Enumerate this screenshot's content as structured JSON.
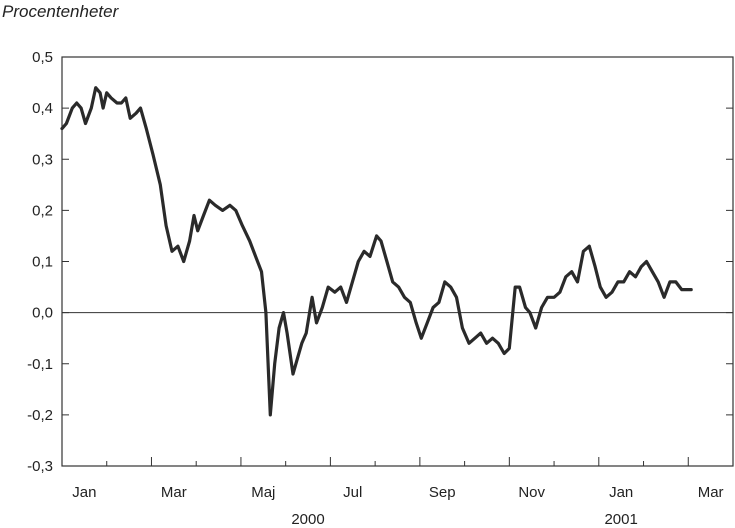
{
  "chart_data": {
    "type": "line",
    "unit_label": "Procentenheter",
    "ylim": [
      -0.3,
      0.5
    ],
    "yticks": [
      "0,5",
      "0,4",
      "0,3",
      "0,2",
      "0,1",
      "0,0",
      "-0,1",
      "-0,2",
      "-0,3"
    ],
    "ytick_values": [
      0.5,
      0.4,
      0.3,
      0.2,
      0.1,
      0.0,
      -0.1,
      -0.2,
      -0.3
    ],
    "x_start": "2000-01",
    "x_end": "2001-03",
    "month_labels": [
      {
        "label": "Jan",
        "at": "2000-01"
      },
      {
        "label": "Mar",
        "at": "2000-03"
      },
      {
        "label": "Maj",
        "at": "2000-05"
      },
      {
        "label": "Jul",
        "at": "2000-07"
      },
      {
        "label": "Sep",
        "at": "2000-09"
      },
      {
        "label": "Nov",
        "at": "2000-11"
      },
      {
        "label": "Jan",
        "at": "2001-01"
      },
      {
        "label": "Mar",
        "at": "2001-03"
      }
    ],
    "year_labels": [
      {
        "label": "2000",
        "at": "2000-06"
      },
      {
        "label": "2001",
        "at": "2001-01"
      }
    ],
    "zero_line": 0.0,
    "grid": false,
    "series": [
      {
        "color": "#2a2a2a",
        "points": [
          [
            "2000-01-01",
            0.36
          ],
          [
            "2000-01-04",
            0.37
          ],
          [
            "2000-01-08",
            0.4
          ],
          [
            "2000-01-11",
            0.41
          ],
          [
            "2000-01-14",
            0.4
          ],
          [
            "2000-01-17",
            0.37
          ],
          [
            "2000-01-21",
            0.4
          ],
          [
            "2000-01-24",
            0.44
          ],
          [
            "2000-01-27",
            0.43
          ],
          [
            "2000-01-29",
            0.4
          ],
          [
            "2000-02-01",
            0.43
          ],
          [
            "2000-02-04",
            0.42
          ],
          [
            "2000-02-08",
            0.41
          ],
          [
            "2000-02-11",
            0.41
          ],
          [
            "2000-02-14",
            0.42
          ],
          [
            "2000-02-17",
            0.38
          ],
          [
            "2000-02-21",
            0.39
          ],
          [
            "2000-02-24",
            0.4
          ],
          [
            "2000-02-28",
            0.36
          ],
          [
            "2000-03-02",
            0.31
          ],
          [
            "2000-03-07",
            0.25
          ],
          [
            "2000-03-11",
            0.17
          ],
          [
            "2000-03-15",
            0.12
          ],
          [
            "2000-03-19",
            0.13
          ],
          [
            "2000-03-23",
            0.1
          ],
          [
            "2000-03-27",
            0.14
          ],
          [
            "2000-03-30",
            0.19
          ],
          [
            "2000-04-02",
            0.16
          ],
          [
            "2000-04-06",
            0.19
          ],
          [
            "2000-04-10",
            0.22
          ],
          [
            "2000-04-14",
            0.21
          ],
          [
            "2000-04-19",
            0.2
          ],
          [
            "2000-04-24",
            0.21
          ],
          [
            "2000-04-28",
            0.2
          ],
          [
            "2000-05-02",
            0.17
          ],
          [
            "2000-05-07",
            0.14
          ],
          [
            "2000-05-11",
            0.11
          ],
          [
            "2000-05-15",
            0.08
          ],
          [
            "2000-05-18",
            0.0
          ],
          [
            "2000-05-21",
            -0.2
          ],
          [
            "2000-05-24",
            -0.1
          ],
          [
            "2000-05-27",
            -0.03
          ],
          [
            "2000-05-30",
            0.0
          ],
          [
            "2000-06-02",
            -0.04
          ],
          [
            "2000-06-06",
            -0.12
          ],
          [
            "2000-06-09",
            -0.09
          ],
          [
            "2000-06-12",
            -0.06
          ],
          [
            "2000-06-15",
            -0.04
          ],
          [
            "2000-06-19",
            0.03
          ],
          [
            "2000-06-22",
            -0.02
          ],
          [
            "2000-06-26",
            0.01
          ],
          [
            "2000-06-30",
            0.05
          ],
          [
            "2000-07-04",
            0.04
          ],
          [
            "2000-07-08",
            0.05
          ],
          [
            "2000-07-12",
            0.02
          ],
          [
            "2000-07-16",
            0.06
          ],
          [
            "2000-07-20",
            0.1
          ],
          [
            "2000-07-24",
            0.12
          ],
          [
            "2000-07-28",
            0.11
          ],
          [
            "2000-08-02",
            0.15
          ],
          [
            "2000-08-05",
            0.14
          ],
          [
            "2000-08-09",
            0.1
          ],
          [
            "2000-08-13",
            0.06
          ],
          [
            "2000-08-17",
            0.05
          ],
          [
            "2000-08-21",
            0.03
          ],
          [
            "2000-08-25",
            0.02
          ],
          [
            "2000-08-29",
            -0.02
          ],
          [
            "2000-09-02",
            -0.05
          ],
          [
            "2000-09-06",
            -0.02
          ],
          [
            "2000-09-10",
            0.01
          ],
          [
            "2000-09-14",
            0.02
          ],
          [
            "2000-09-18",
            0.06
          ],
          [
            "2000-09-22",
            0.05
          ],
          [
            "2000-09-26",
            0.03
          ],
          [
            "2000-09-30",
            -0.03
          ],
          [
            "2000-10-04",
            -0.06
          ],
          [
            "2000-10-08",
            -0.05
          ],
          [
            "2000-10-12",
            -0.04
          ],
          [
            "2000-10-16",
            -0.06
          ],
          [
            "2000-10-20",
            -0.05
          ],
          [
            "2000-10-24",
            -0.06
          ],
          [
            "2000-10-28",
            -0.08
          ],
          [
            "2000-11-01",
            -0.07
          ],
          [
            "2000-11-05",
            0.05
          ],
          [
            "2000-11-08",
            0.05
          ],
          [
            "2000-11-12",
            0.01
          ],
          [
            "2000-11-15",
            0.0
          ],
          [
            "2000-11-19",
            -0.03
          ],
          [
            "2000-11-23",
            0.01
          ],
          [
            "2000-11-27",
            0.03
          ],
          [
            "2000-12-01",
            0.03
          ],
          [
            "2000-12-05",
            0.04
          ],
          [
            "2000-12-09",
            0.07
          ],
          [
            "2000-12-13",
            0.08
          ],
          [
            "2000-12-17",
            0.06
          ],
          [
            "2000-12-21",
            0.12
          ],
          [
            "2000-12-25",
            0.13
          ],
          [
            "2000-12-29",
            0.09
          ],
          [
            "2001-01-02",
            0.05
          ],
          [
            "2001-01-06",
            0.03
          ],
          [
            "2001-01-10",
            0.04
          ],
          [
            "2001-01-14",
            0.06
          ],
          [
            "2001-01-18",
            0.06
          ],
          [
            "2001-01-22",
            0.08
          ],
          [
            "2001-01-26",
            0.07
          ],
          [
            "2001-01-30",
            0.09
          ],
          [
            "2001-02-03",
            0.1
          ],
          [
            "2001-02-07",
            0.08
          ],
          [
            "2001-02-11",
            0.06
          ],
          [
            "2001-02-15",
            0.03
          ],
          [
            "2001-02-19",
            0.06
          ],
          [
            "2001-02-23",
            0.06
          ],
          [
            "2001-02-27",
            0.045
          ],
          [
            "2001-03-03",
            0.045
          ]
        ]
      }
    ]
  }
}
